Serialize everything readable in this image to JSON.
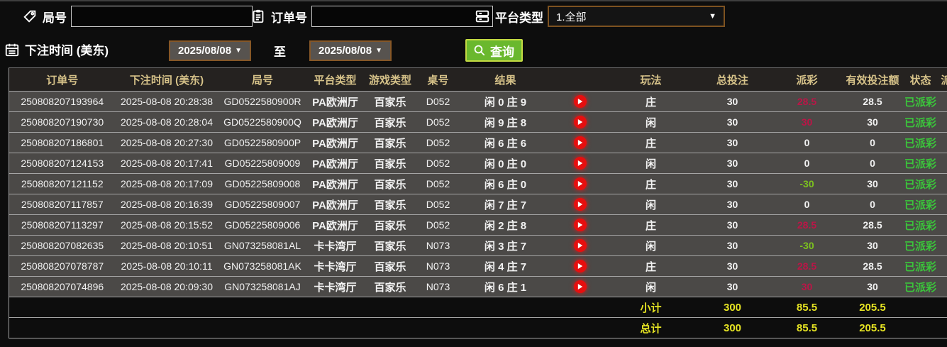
{
  "colors": {
    "payout_win": "#bb1547",
    "payout_loss": "#7cc21e",
    "status_paid": "#3bc53b",
    "totals_yellow": "#e5e323",
    "header_text": "#d6c289",
    "query_button_green": "#6ab82e",
    "play_button_red": "#e60f0f"
  },
  "filters": {
    "round_label": "局号",
    "round_value": "",
    "order_label": "订单号",
    "order_value": "",
    "platform_label": "平台类型",
    "platform_value": "1.全部",
    "bet_time_label": "下注时间 (美东)",
    "date_from": "2025/08/08",
    "to_label": "至",
    "date_to": "2025/08/08",
    "query_label": "查询"
  },
  "table": {
    "headers": [
      "订单号",
      "下注时间 (美东)",
      "局号",
      "平台类型",
      "游戏类型",
      "桌号",
      "结果",
      "",
      "玩法",
      "总投注",
      "派彩",
      "有效投注额",
      "状态",
      "派"
    ],
    "rows": [
      {
        "order": "250808207193964",
        "time": "2025-08-08 20:28:38",
        "round": "GD0522580900R",
        "platform": "PA欧洲厅",
        "game": "百家乐",
        "table_no": "D052",
        "result": "闲 0 庄 9",
        "bet": "庄",
        "total": "30",
        "payout": "28.5",
        "valid": "28.5",
        "status": "已派彩"
      },
      {
        "order": "250808207190730",
        "time": "2025-08-08 20:28:04",
        "round": "GD0522580900Q",
        "platform": "PA欧洲厅",
        "game": "百家乐",
        "table_no": "D052",
        "result": "闲 9 庄 8",
        "bet": "闲",
        "total": "30",
        "payout": "30",
        "valid": "30",
        "status": "已派彩"
      },
      {
        "order": "250808207186801",
        "time": "2025-08-08 20:27:30",
        "round": "GD0522580900P",
        "platform": "PA欧洲厅",
        "game": "百家乐",
        "table_no": "D052",
        "result": "闲 6 庄 6",
        "bet": "庄",
        "total": "30",
        "payout": "0",
        "valid": "0",
        "status": "已派彩"
      },
      {
        "order": "250808207124153",
        "time": "2025-08-08 20:17:41",
        "round": "GD05225809009",
        "platform": "PA欧洲厅",
        "game": "百家乐",
        "table_no": "D052",
        "result": "闲 0 庄 0",
        "bet": "闲",
        "total": "30",
        "payout": "0",
        "valid": "0",
        "status": "已派彩"
      },
      {
        "order": "250808207121152",
        "time": "2025-08-08 20:17:09",
        "round": "GD05225809008",
        "platform": "PA欧洲厅",
        "game": "百家乐",
        "table_no": "D052",
        "result": "闲 6 庄 0",
        "bet": "庄",
        "total": "30",
        "payout": "-30",
        "valid": "30",
        "status": "已派彩"
      },
      {
        "order": "250808207117857",
        "time": "2025-08-08 20:16:39",
        "round": "GD05225809007",
        "platform": "PA欧洲厅",
        "game": "百家乐",
        "table_no": "D052",
        "result": "闲 7 庄 7",
        "bet": "闲",
        "total": "30",
        "payout": "0",
        "valid": "0",
        "status": "已派彩"
      },
      {
        "order": "250808207113297",
        "time": "2025-08-08 20:15:52",
        "round": "GD05225809006",
        "platform": "PA欧洲厅",
        "game": "百家乐",
        "table_no": "D052",
        "result": "闲 2 庄 8",
        "bet": "庄",
        "total": "30",
        "payout": "28.5",
        "valid": "28.5",
        "status": "已派彩"
      },
      {
        "order": "250808207082635",
        "time": "2025-08-08 20:10:51",
        "round": "GN073258081AL",
        "platform": "卡卡湾厅",
        "game": "百家乐",
        "table_no": "N073",
        "result": "闲 3 庄 7",
        "bet": "闲",
        "total": "30",
        "payout": "-30",
        "valid": "30",
        "status": "已派彩"
      },
      {
        "order": "250808207078787",
        "time": "2025-08-08 20:10:11",
        "round": "GN073258081AK",
        "platform": "卡卡湾厅",
        "game": "百家乐",
        "table_no": "N073",
        "result": "闲 4 庄 7",
        "bet": "庄",
        "total": "30",
        "payout": "28.5",
        "valid": "28.5",
        "status": "已派彩"
      },
      {
        "order": "250808207074896",
        "time": "2025-08-08 20:09:30",
        "round": "GN073258081AJ",
        "platform": "卡卡湾厅",
        "game": "百家乐",
        "table_no": "N073",
        "result": "闲 6 庄 1",
        "bet": "闲",
        "total": "30",
        "payout": "30",
        "valid": "30",
        "status": "已派彩"
      }
    ],
    "subtotal": {
      "label": "小计",
      "total": "300",
      "payout": "85.5",
      "valid": "205.5"
    },
    "grand_total": {
      "label": "总计",
      "total": "300",
      "payout": "85.5",
      "valid": "205.5"
    }
  }
}
